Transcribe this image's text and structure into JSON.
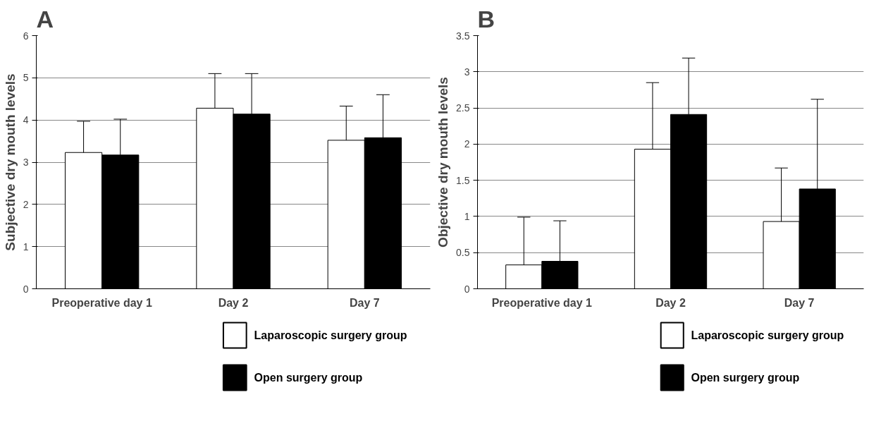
{
  "chart_data": [
    {
      "type": "bar",
      "title": "A",
      "ylabel": "Subjective dry mouth levels",
      "categories": [
        "Preoperative day 1",
        "Day 2",
        "Day 7"
      ],
      "ylim": [
        0,
        6
      ],
      "yticks": [
        0,
        1,
        2,
        3,
        4,
        5,
        6
      ],
      "grid": "y",
      "legend": "bottom",
      "series": [
        {
          "name": "Laparoscopic surgery group",
          "color": "#ffffff",
          "values": [
            3.23,
            4.28,
            3.52
          ],
          "errors": [
            [
              3.23,
              3.97
            ],
            [
              4.28,
              5.1
            ],
            [
              3.52,
              4.33
            ]
          ]
        },
        {
          "name": "Open surgery group",
          "color": "#000000",
          "values": [
            3.17,
            4.14,
            3.58
          ],
          "errors": [
            [
              3.17,
              4.02
            ],
            [
              4.14,
              5.1
            ],
            [
              3.58,
              4.6
            ]
          ]
        }
      ]
    },
    {
      "type": "bar",
      "title": "B",
      "ylabel": "Objective dry mouth levels",
      "categories": [
        "Preoperative day 1",
        "Day 2",
        "Day 7"
      ],
      "ylim": [
        0,
        3.5
      ],
      "yticks": [
        0,
        0.5,
        1,
        1.5,
        2,
        2.5,
        3,
        3.5
      ],
      "grid": "y",
      "legend": "bottom",
      "series": [
        {
          "name": "Laparoscopic surgery group",
          "color": "#ffffff",
          "values": [
            0.33,
            1.93,
            0.93
          ],
          "errors": [
            [
              0.33,
              0.99
            ],
            [
              1.93,
              2.85
            ],
            [
              0.93,
              1.67
            ]
          ]
        },
        {
          "name": "Open surgery group",
          "color": "#000000",
          "values": [
            0.38,
            2.41,
            1.38
          ],
          "errors": [
            [
              0.38,
              0.94
            ],
            [
              2.41,
              3.19
            ],
            [
              1.38,
              2.62
            ]
          ]
        }
      ]
    }
  ]
}
